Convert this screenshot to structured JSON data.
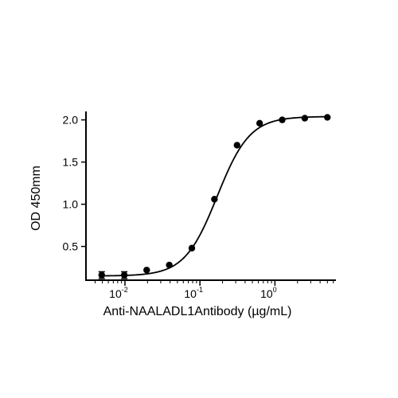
{
  "chart_data": {
    "type": "scatter",
    "xlabel": "Anti-NAALADL1Antibody (µg/mL)",
    "ylabel": "OD 450mm",
    "x_scale": "log",
    "xlim": [
      0.0035,
      6.5
    ],
    "ylim": [
      0.1,
      2.1
    ],
    "x_ticks": [
      {
        "value": 0.01,
        "base": "10",
        "exp": "-2"
      },
      {
        "value": 0.1,
        "base": "10",
        "exp": "-1"
      },
      {
        "value": 1,
        "base": "10",
        "exp": "0"
      }
    ],
    "y_ticks": [
      {
        "value": 0.5,
        "label": "0.5"
      },
      {
        "value": 1.0,
        "label": "1.0"
      },
      {
        "value": 1.5,
        "label": "1.5"
      },
      {
        "value": 2.0,
        "label": "2.0"
      }
    ],
    "grid": false,
    "series": [
      {
        "marker": "circle",
        "fit": "4PL",
        "x": [
          0.0049,
          0.0098,
          0.0195,
          0.039,
          0.078,
          0.156,
          0.3125,
          0.625,
          1.25,
          2.5,
          5.0
        ],
        "y": [
          0.16,
          0.16,
          0.22,
          0.28,
          0.48,
          1.06,
          1.7,
          1.96,
          2.0,
          2.02,
          2.03
        ],
        "err": [
          0.04,
          0.04,
          0,
          0,
          0,
          0,
          0,
          0,
          0,
          0,
          0
        ]
      }
    ],
    "fit_params": {
      "bottom": 0.15,
      "top": 2.04,
      "ec50": 0.17,
      "hill": 2.0
    }
  }
}
